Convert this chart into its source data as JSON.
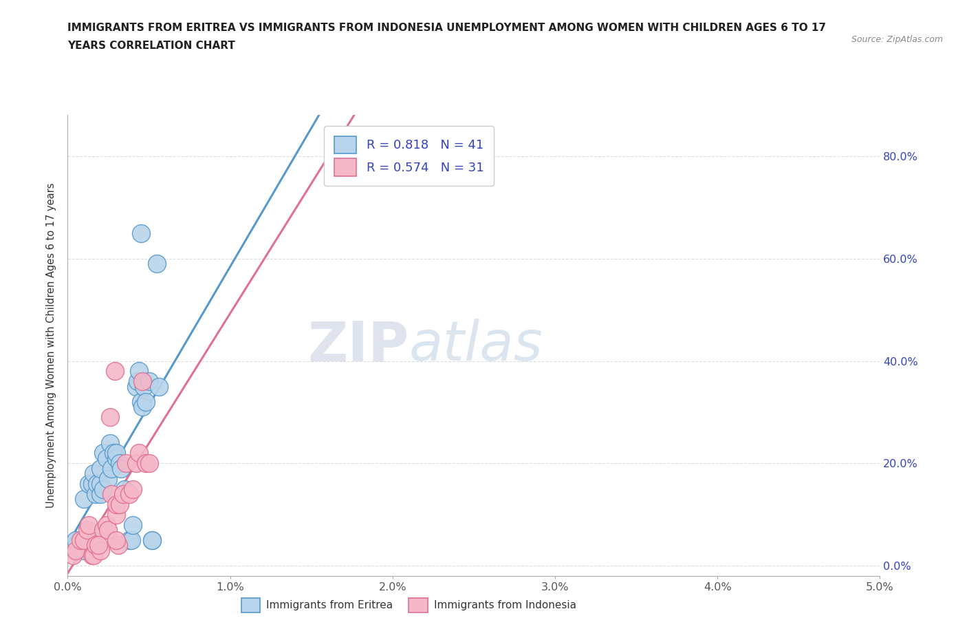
{
  "title_line1": "IMMIGRANTS FROM ERITREA VS IMMIGRANTS FROM INDONESIA UNEMPLOYMENT AMONG WOMEN WITH CHILDREN AGES 6 TO 17",
  "title_line2": "YEARS CORRELATION CHART",
  "source": "Source: ZipAtlas.com",
  "xlabel_ticks": [
    "0.0%",
    "1.0%",
    "2.0%",
    "3.0%",
    "4.0%",
    "5.0%"
  ],
  "ylabel_ticks": [
    "0.0%",
    "20.0%",
    "40.0%",
    "60.0%",
    "80.0%"
  ],
  "xlim": [
    0.0,
    0.05
  ],
  "ylim": [
    -0.02,
    0.88
  ],
  "legend_label1": "Immigrants from Eritrea",
  "legend_label2": "Immigrants from Indonesia",
  "R1": 0.818,
  "N1": 41,
  "R2": 0.574,
  "N2": 31,
  "color1": "#b8d4ea",
  "color2": "#f5b8c8",
  "line_color1": "#5599cc",
  "line_color2": "#e07090",
  "legend_text_color": "#3344bb",
  "watermark_zip": "ZIP",
  "watermark_atlas": "atlas",
  "eritrea_x": [
    0.0005,
    0.001,
    0.001,
    0.001,
    0.0013,
    0.0015,
    0.0015,
    0.0016,
    0.0017,
    0.0018,
    0.002,
    0.002,
    0.002,
    0.0022,
    0.0022,
    0.0024,
    0.0025,
    0.0026,
    0.0027,
    0.0028,
    0.003,
    0.003,
    0.0032,
    0.0033,
    0.0035,
    0.0038,
    0.0039,
    0.004,
    0.0042,
    0.0043,
    0.0044,
    0.0045,
    0.0046,
    0.0047,
    0.0048,
    0.005,
    0.0052,
    0.0052,
    0.0055,
    0.0056,
    0.0045
  ],
  "eritrea_y": [
    0.05,
    0.03,
    0.05,
    0.13,
    0.16,
    0.05,
    0.16,
    0.18,
    0.14,
    0.16,
    0.14,
    0.16,
    0.19,
    0.15,
    0.22,
    0.21,
    0.17,
    0.24,
    0.19,
    0.22,
    0.21,
    0.22,
    0.2,
    0.19,
    0.15,
    0.05,
    0.05,
    0.08,
    0.35,
    0.36,
    0.38,
    0.32,
    0.31,
    0.35,
    0.32,
    0.36,
    0.05,
    0.05,
    0.59,
    0.35,
    0.65
  ],
  "indonesia_x": [
    0.0003,
    0.0005,
    0.0008,
    0.001,
    0.0012,
    0.0013,
    0.0015,
    0.0016,
    0.0017,
    0.002,
    0.0022,
    0.0024,
    0.0025,
    0.0027,
    0.003,
    0.003,
    0.0032,
    0.0034,
    0.0036,
    0.0038,
    0.004,
    0.0042,
    0.0044,
    0.0046,
    0.0048,
    0.005,
    0.0026,
    0.0029,
    0.0019,
    0.0031,
    0.003
  ],
  "indonesia_y": [
    0.02,
    0.03,
    0.05,
    0.05,
    0.07,
    0.08,
    0.02,
    0.02,
    0.04,
    0.03,
    0.07,
    0.08,
    0.07,
    0.14,
    0.1,
    0.12,
    0.12,
    0.14,
    0.2,
    0.14,
    0.15,
    0.2,
    0.22,
    0.36,
    0.2,
    0.2,
    0.29,
    0.38,
    0.04,
    0.04,
    0.05
  ]
}
